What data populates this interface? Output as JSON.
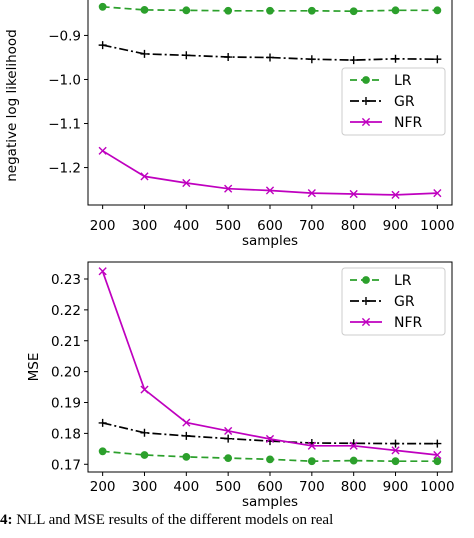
{
  "chart_data": [
    {
      "type": "line",
      "title": "",
      "xlabel": "samples",
      "ylabel": "negative log likelihood",
      "x": [
        200,
        300,
        400,
        500,
        600,
        700,
        800,
        900,
        1000
      ],
      "xlim": [
        165,
        1035
      ],
      "ylim": [
        -1.285,
        -0.815
      ],
      "yticks": [
        -0.9,
        -1.0,
        -1.1,
        -1.2
      ],
      "ytick_labels": [
        "−0.9",
        "−1.0",
        "−1.1",
        "−1.2"
      ],
      "xticks": [
        200,
        300,
        400,
        500,
        600,
        700,
        800,
        900,
        1000
      ],
      "legend_position": "center-right",
      "series": [
        {
          "name": "LR",
          "color": "#2ca02c",
          "marker": "dot",
          "dash": "dashed",
          "values": [
            -0.835,
            -0.842,
            -0.843,
            -0.844,
            -0.844,
            -0.844,
            -0.845,
            -0.843,
            -0.843
          ]
        },
        {
          "name": "GR",
          "color": "#000000",
          "marker": "plus",
          "dash": "dashdot",
          "values": [
            -0.922,
            -0.942,
            -0.945,
            -0.949,
            -0.95,
            -0.954,
            -0.956,
            -0.953,
            -0.954
          ]
        },
        {
          "name": "NFR",
          "color": "#bf00bf",
          "marker": "x",
          "dash": "solid",
          "values": [
            -1.162,
            -1.22,
            -1.235,
            -1.248,
            -1.252,
            -1.258,
            -1.26,
            -1.262,
            -1.258
          ]
        }
      ]
    },
    {
      "type": "line",
      "title": "",
      "xlabel": "samples",
      "ylabel": "MSE",
      "x": [
        200,
        300,
        400,
        500,
        600,
        700,
        800,
        900,
        1000
      ],
      "xlim": [
        165,
        1035
      ],
      "ylim": [
        0.1675,
        0.2355
      ],
      "yticks": [
        0.17,
        0.18,
        0.19,
        0.2,
        0.21,
        0.22,
        0.23
      ],
      "ytick_labels": [
        "0.17",
        "0.18",
        "0.19",
        "0.20",
        "0.21",
        "0.22",
        "0.23"
      ],
      "xticks": [
        200,
        300,
        400,
        500,
        600,
        700,
        800,
        900,
        1000
      ],
      "legend_position": "top-right",
      "series": [
        {
          "name": "LR",
          "color": "#2ca02c",
          "marker": "dot",
          "dash": "dashed",
          "values": [
            0.1742,
            0.173,
            0.1724,
            0.172,
            0.1716,
            0.171,
            0.1712,
            0.171,
            0.171
          ]
        },
        {
          "name": "GR",
          "color": "#000000",
          "marker": "plus",
          "dash": "dashdot",
          "values": [
            0.1834,
            0.1802,
            0.1792,
            0.1783,
            0.1775,
            0.1769,
            0.1768,
            0.1767,
            0.1767
          ]
        },
        {
          "name": "NFR",
          "color": "#bf00bf",
          "marker": "x",
          "dash": "solid",
          "values": [
            0.2325,
            0.1942,
            0.1835,
            0.1808,
            0.1782,
            0.176,
            0.176,
            0.1745,
            0.173
          ]
        }
      ]
    }
  ],
  "caption": {
    "label": "4:",
    "text": " NLL and MSE results of the different models on real"
  }
}
